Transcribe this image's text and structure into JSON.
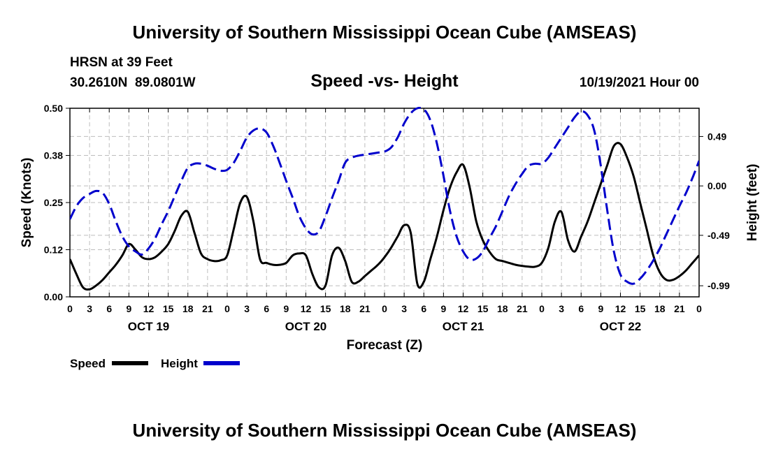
{
  "page_title": "University of Southern Mississippi Ocean Cube (AMSEAS)",
  "footer_title": "University of Southern Mississippi Ocean Cube (AMSEAS)",
  "station": {
    "name_line": "HRSN at 39 Feet",
    "coords_line": "30.2610N  89.0801W"
  },
  "datetime_label": "10/19/2021 Hour 00",
  "chart_data": {
    "type": "line",
    "title": "Speed -vs- Height",
    "xlabel": "Forecast (Z)",
    "ylabel_left": "Speed (Knots)",
    "ylabel_right": "Height (feet)",
    "xlim": [
      0,
      96
    ],
    "ylim_left": [
      0,
      0.5
    ],
    "ylim_right": [
      -1.1,
      0.77
    ],
    "left_ticks": [
      {
        "value": 0.0,
        "label": "0.00"
      },
      {
        "value": 0.125,
        "label": "0.12"
      },
      {
        "value": 0.25,
        "label": "0.25"
      },
      {
        "value": 0.375,
        "label": "0.38"
      },
      {
        "value": 0.5,
        "label": "0.50"
      }
    ],
    "right_ticks": [
      {
        "value": -0.99,
        "label": "-0.99"
      },
      {
        "value": -0.49,
        "label": "-0.49"
      },
      {
        "value": 0.0,
        "label": "0.00"
      },
      {
        "value": 0.49,
        "label": "0.49"
      }
    ],
    "x_ticks": [
      {
        "x": 0,
        "label": "0"
      },
      {
        "x": 3,
        "label": "3"
      },
      {
        "x": 6,
        "label": "6"
      },
      {
        "x": 9,
        "label": "9"
      },
      {
        "x": 12,
        "label": "12"
      },
      {
        "x": 15,
        "label": "15"
      },
      {
        "x": 18,
        "label": "18"
      },
      {
        "x": 21,
        "label": "21"
      },
      {
        "x": 24,
        "label": "0"
      },
      {
        "x": 27,
        "label": "3"
      },
      {
        "x": 30,
        "label": "6"
      },
      {
        "x": 33,
        "label": "9"
      },
      {
        "x": 36,
        "label": "12"
      },
      {
        "x": 39,
        "label": "15"
      },
      {
        "x": 42,
        "label": "18"
      },
      {
        "x": 45,
        "label": "21"
      },
      {
        "x": 48,
        "label": "0"
      },
      {
        "x": 51,
        "label": "3"
      },
      {
        "x": 54,
        "label": "6"
      },
      {
        "x": 57,
        "label": "9"
      },
      {
        "x": 60,
        "label": "12"
      },
      {
        "x": 63,
        "label": "15"
      },
      {
        "x": 66,
        "label": "18"
      },
      {
        "x": 69,
        "label": "21"
      },
      {
        "x": 72,
        "label": "0"
      },
      {
        "x": 75,
        "label": "3"
      },
      {
        "x": 78,
        "label": "6"
      },
      {
        "x": 81,
        "label": "9"
      },
      {
        "x": 84,
        "label": "12"
      },
      {
        "x": 87,
        "label": "15"
      },
      {
        "x": 90,
        "label": "18"
      },
      {
        "x": 93,
        "label": "21"
      },
      {
        "x": 96,
        "label": "0"
      }
    ],
    "date_labels": [
      {
        "x": 12,
        "label": "OCT 19"
      },
      {
        "x": 36,
        "label": "OCT 20"
      },
      {
        "x": 60,
        "label": "OCT 21"
      },
      {
        "x": 84,
        "label": "OCT 22"
      }
    ],
    "grid": true,
    "legend_position": "bottom-left",
    "series": [
      {
        "name": "Speed",
        "axis": "left",
        "color": "#000000",
        "style": "solid",
        "legend_label": "Speed",
        "points": [
          [
            0,
            0.1
          ],
          [
            1,
            0.06
          ],
          [
            2,
            0.025
          ],
          [
            3,
            0.02
          ],
          [
            4,
            0.03
          ],
          [
            5,
            0.045
          ],
          [
            6,
            0.065
          ],
          [
            7,
            0.085
          ],
          [
            8,
            0.11
          ],
          [
            9,
            0.14
          ],
          [
            10,
            0.125
          ],
          [
            11,
            0.105
          ],
          [
            12,
            0.1
          ],
          [
            13,
            0.105
          ],
          [
            14,
            0.12
          ],
          [
            15,
            0.14
          ],
          [
            16,
            0.175
          ],
          [
            17,
            0.215
          ],
          [
            18,
            0.225
          ],
          [
            19,
            0.17
          ],
          [
            20,
            0.115
          ],
          [
            21,
            0.1
          ],
          [
            22,
            0.095
          ],
          [
            23,
            0.097
          ],
          [
            24,
            0.11
          ],
          [
            25,
            0.18
          ],
          [
            26,
            0.25
          ],
          [
            27,
            0.265
          ],
          [
            28,
            0.2
          ],
          [
            29,
            0.1
          ],
          [
            30,
            0.09
          ],
          [
            31,
            0.085
          ],
          [
            32,
            0.085
          ],
          [
            33,
            0.09
          ],
          [
            34,
            0.11
          ],
          [
            35,
            0.115
          ],
          [
            36,
            0.11
          ],
          [
            37,
            0.06
          ],
          [
            38,
            0.025
          ],
          [
            39,
            0.03
          ],
          [
            40,
            0.11
          ],
          [
            41,
            0.13
          ],
          [
            42,
            0.095
          ],
          [
            43,
            0.04
          ],
          [
            44,
            0.04
          ],
          [
            45,
            0.055
          ],
          [
            46,
            0.07
          ],
          [
            47,
            0.085
          ],
          [
            48,
            0.105
          ],
          [
            49,
            0.13
          ],
          [
            50,
            0.16
          ],
          [
            51,
            0.19
          ],
          [
            52,
            0.17
          ],
          [
            53,
            0.035
          ],
          [
            54,
            0.04
          ],
          [
            55,
            0.1
          ],
          [
            56,
            0.16
          ],
          [
            57,
            0.23
          ],
          [
            58,
            0.29
          ],
          [
            59,
            0.33
          ],
          [
            60,
            0.35
          ],
          [
            61,
            0.29
          ],
          [
            62,
            0.2
          ],
          [
            63,
            0.15
          ],
          [
            64,
            0.12
          ],
          [
            65,
            0.1
          ],
          [
            66,
            0.095
          ],
          [
            67,
            0.09
          ],
          [
            68,
            0.085
          ],
          [
            69,
            0.082
          ],
          [
            70,
            0.08
          ],
          [
            71,
            0.08
          ],
          [
            72,
            0.09
          ],
          [
            73,
            0.13
          ],
          [
            74,
            0.2
          ],
          [
            75,
            0.225
          ],
          [
            76,
            0.15
          ],
          [
            77,
            0.12
          ],
          [
            78,
            0.16
          ],
          [
            79,
            0.2
          ],
          [
            80,
            0.25
          ],
          [
            81,
            0.3
          ],
          [
            82,
            0.35
          ],
          [
            83,
            0.4
          ],
          [
            84,
            0.405
          ],
          [
            85,
            0.37
          ],
          [
            86,
            0.32
          ],
          [
            87,
            0.25
          ],
          [
            88,
            0.18
          ],
          [
            89,
            0.11
          ],
          [
            90,
            0.065
          ],
          [
            91,
            0.045
          ],
          [
            92,
            0.045
          ],
          [
            93,
            0.055
          ],
          [
            94,
            0.07
          ],
          [
            95,
            0.09
          ],
          [
            96,
            0.11
          ]
        ]
      },
      {
        "name": "Height",
        "axis": "right",
        "color": "#0000cc",
        "style": "dashed",
        "legend_label": "Height",
        "points": [
          [
            0,
            -0.33
          ],
          [
            1,
            -0.2
          ],
          [
            2,
            -0.12
          ],
          [
            3,
            -0.08
          ],
          [
            4,
            -0.05
          ],
          [
            5,
            -0.07
          ],
          [
            6,
            -0.18
          ],
          [
            7,
            -0.35
          ],
          [
            8,
            -0.5
          ],
          [
            9,
            -0.6
          ],
          [
            10,
            -0.65
          ],
          [
            11,
            -0.68
          ],
          [
            12,
            -0.62
          ],
          [
            13,
            -0.52
          ],
          [
            14,
            -0.38
          ],
          [
            15,
            -0.25
          ],
          [
            16,
            -0.1
          ],
          [
            17,
            0.05
          ],
          [
            18,
            0.18
          ],
          [
            19,
            0.22
          ],
          [
            20,
            0.22
          ],
          [
            21,
            0.2
          ],
          [
            22,
            0.17
          ],
          [
            23,
            0.15
          ],
          [
            24,
            0.16
          ],
          [
            25,
            0.23
          ],
          [
            26,
            0.35
          ],
          [
            27,
            0.48
          ],
          [
            28,
            0.55
          ],
          [
            29,
            0.57
          ],
          [
            30,
            0.53
          ],
          [
            31,
            0.4
          ],
          [
            32,
            0.23
          ],
          [
            33,
            0.05
          ],
          [
            34,
            -0.12
          ],
          [
            35,
            -0.3
          ],
          [
            36,
            -0.42
          ],
          [
            37,
            -0.48
          ],
          [
            38,
            -0.45
          ],
          [
            39,
            -0.3
          ],
          [
            40,
            -0.12
          ],
          [
            41,
            0.05
          ],
          [
            42,
            0.23
          ],
          [
            43,
            0.28
          ],
          [
            44,
            0.3
          ],
          [
            45,
            0.31
          ],
          [
            46,
            0.32
          ],
          [
            47,
            0.33
          ],
          [
            48,
            0.34
          ],
          [
            49,
            0.38
          ],
          [
            50,
            0.48
          ],
          [
            51,
            0.62
          ],
          [
            52,
            0.72
          ],
          [
            53,
            0.77
          ],
          [
            54,
            0.76
          ],
          [
            55,
            0.65
          ],
          [
            56,
            0.42
          ],
          [
            57,
            0.1
          ],
          [
            58,
            -0.25
          ],
          [
            59,
            -0.5
          ],
          [
            60,
            -0.65
          ],
          [
            61,
            -0.73
          ],
          [
            62,
            -0.72
          ],
          [
            63,
            -0.65
          ],
          [
            64,
            -0.52
          ],
          [
            65,
            -0.4
          ],
          [
            66,
            -0.25
          ],
          [
            67,
            -0.1
          ],
          [
            68,
            0.02
          ],
          [
            69,
            0.12
          ],
          [
            70,
            0.2
          ],
          [
            71,
            0.22
          ],
          [
            72,
            0.22
          ],
          [
            73,
            0.28
          ],
          [
            74,
            0.38
          ],
          [
            75,
            0.48
          ],
          [
            76,
            0.58
          ],
          [
            77,
            0.68
          ],
          [
            78,
            0.74
          ],
          [
            79,
            0.7
          ],
          [
            80,
            0.55
          ],
          [
            81,
            0.2
          ],
          [
            82,
            -0.25
          ],
          [
            83,
            -0.65
          ],
          [
            84,
            -0.88
          ],
          [
            85,
            -0.95
          ],
          [
            86,
            -0.97
          ],
          [
            87,
            -0.92
          ],
          [
            88,
            -0.84
          ],
          [
            89,
            -0.74
          ],
          [
            90,
            -0.62
          ],
          [
            91,
            -0.48
          ],
          [
            92,
            -0.34
          ],
          [
            93,
            -0.2
          ],
          [
            94,
            -0.07
          ],
          [
            95,
            0.08
          ],
          [
            96,
            0.25
          ]
        ]
      }
    ]
  }
}
